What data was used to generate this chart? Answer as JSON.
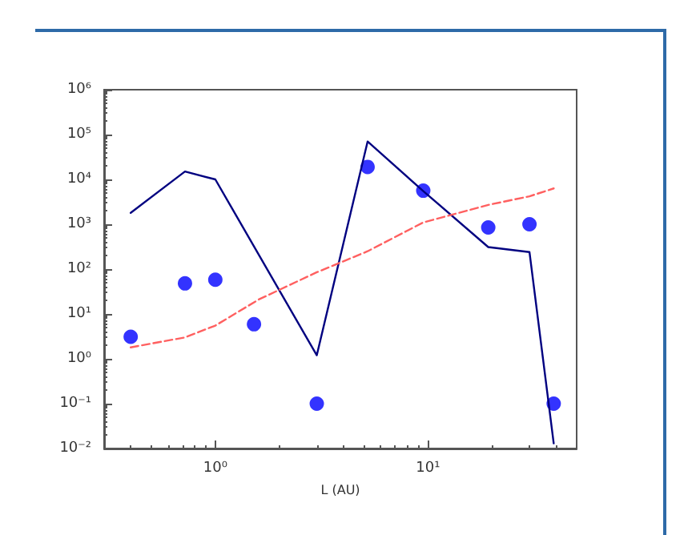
{
  "chart_data": {
    "type": "scatter",
    "xlabel": "L (AU)",
    "log": "xy",
    "grid": false,
    "xlim": [
      0.3,
      50
    ],
    "xticks": [
      {
        "value": 1,
        "label": "10⁰"
      },
      {
        "value": 10,
        "label": "10¹"
      }
    ],
    "ylim": [
      0.01,
      1000000
    ],
    "yticks": [
      {
        "value": 0.01,
        "label": "10⁻²"
      },
      {
        "value": 0.1,
        "label": "10⁻¹"
      },
      {
        "value": 1,
        "label": "10⁰"
      },
      {
        "value": 10,
        "label": "10¹"
      },
      {
        "value": 100,
        "label": "10²"
      },
      {
        "value": 1000,
        "label": "10³"
      },
      {
        "value": 10000,
        "label": "10⁴"
      },
      {
        "value": 100000,
        "label": "10⁵"
      },
      {
        "value": 1000000,
        "label": "10⁶"
      }
    ],
    "series": [
      {
        "type": "line",
        "color": "#000080",
        "line_style": "solid",
        "marker": "none",
        "x": [
          0.4,
          0.72,
          1.0,
          3.0,
          5.2,
          9.5,
          19.2,
          30,
          39
        ],
        "values": [
          1800,
          15000,
          10000,
          1.2,
          70000,
          5500,
          310,
          240,
          0.013
        ]
      },
      {
        "type": "line",
        "color": "#ff6060",
        "line_style": "dashed",
        "marker": "none",
        "x": [
          0.4,
          0.72,
          1.0,
          1.6,
          3.0,
          5.2,
          9.5,
          19.2,
          30,
          39
        ],
        "values": [
          1.8,
          3.0,
          5.5,
          21,
          85,
          250,
          1100,
          2700,
          4200,
          6300
        ]
      },
      {
        "color": "#0000ff",
        "marker": "circle",
        "x": [
          0.4,
          0.72,
          1.0,
          1.52,
          3.0,
          5.2,
          9.5,
          19.2,
          30,
          39
        ],
        "values": [
          3.1,
          48,
          58,
          5.9,
          0.1,
          19000,
          5600,
          850,
          1000,
          0.1
        ]
      }
    ]
  }
}
